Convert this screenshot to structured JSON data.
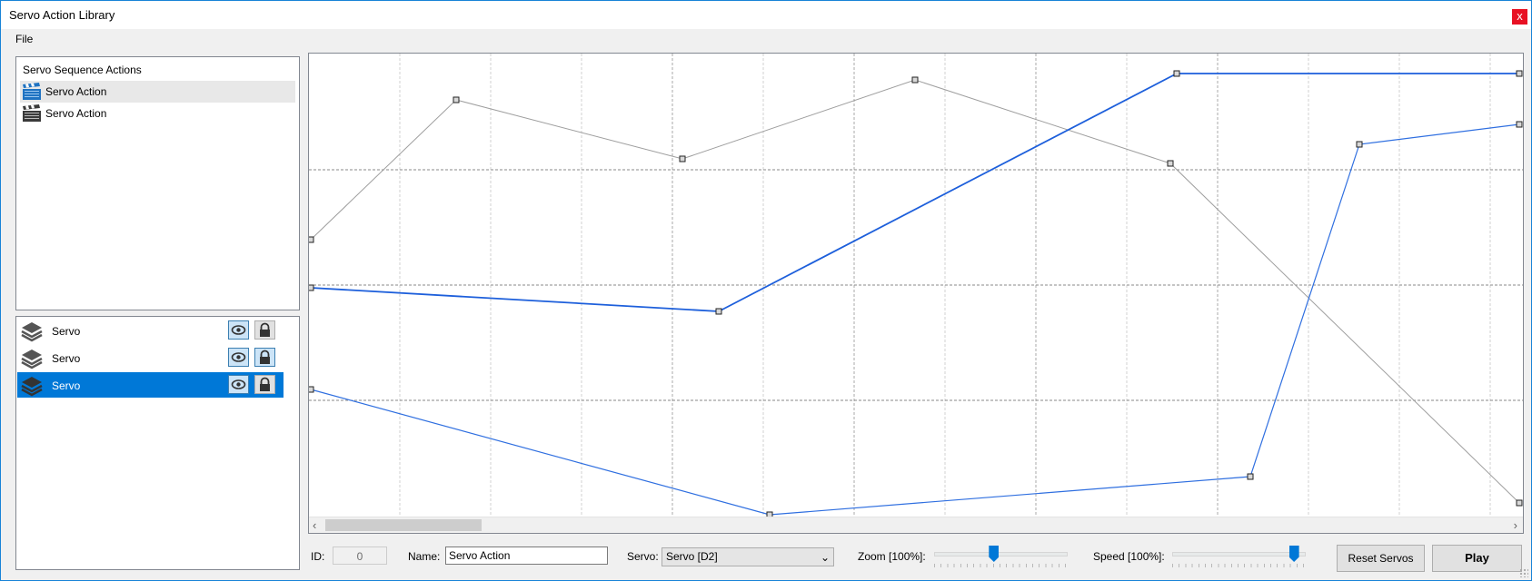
{
  "window": {
    "title": "Servo Action Library",
    "close_glyph": "x"
  },
  "menu": {
    "file": "File"
  },
  "actions": {
    "header": "Servo Sequence Actions",
    "items": [
      {
        "label": "Servo Action",
        "icon": "clapperboard-icon",
        "selected": true,
        "color": "#1f73c2"
      },
      {
        "label": "Servo Action",
        "icon": "clapperboard-icon",
        "selected": false,
        "color": "#3a3a3a"
      }
    ]
  },
  "servos": {
    "items": [
      {
        "label": "Servo",
        "visible": true,
        "locked": false,
        "selected": false
      },
      {
        "label": "Servo",
        "visible": true,
        "locked": true,
        "selected": false
      },
      {
        "label": "Servo",
        "visible": true,
        "locked": false,
        "selected": true
      }
    ]
  },
  "graph": {
    "colors": {
      "active": "#1d5fdb",
      "secondary": "#2f6fe0",
      "inactive": "#9e9e9e",
      "grid": "#a0a0a0"
    },
    "series": [
      {
        "color": "#9e9e9e",
        "values": [
          [
            0,
            35
          ],
          [
            1,
            85
          ],
          [
            2,
            68
          ],
          [
            3,
            90
          ],
          [
            4,
            67
          ],
          [
            5,
            6
          ]
        ]
      },
      {
        "color": "#1d5fdb",
        "values": [
          [
            0,
            21
          ],
          [
            1,
            14
          ],
          [
            2,
            97
          ],
          [
            3,
            97
          ]
        ]
      },
      {
        "color": "#2f6fe0",
        "values": [
          [
            0,
            6
          ],
          [
            1,
            -26
          ],
          [
            2,
            -15
          ],
          [
            3,
            75
          ],
          [
            4,
            81
          ]
        ]
      }
    ]
  },
  "bottom": {
    "id_label": "ID:",
    "id_value": "0",
    "name_label": "Name:",
    "name_value": "Servo Action",
    "servo_label": "Servo:",
    "servo_value": "Servo [D2]",
    "zoom_label": "Zoom [100%]:",
    "zoom_level": 0.45,
    "speed_label": "Speed [100%]:",
    "speed_level": 0.96,
    "reset_label": "Reset Servos",
    "play_label": "Play"
  }
}
